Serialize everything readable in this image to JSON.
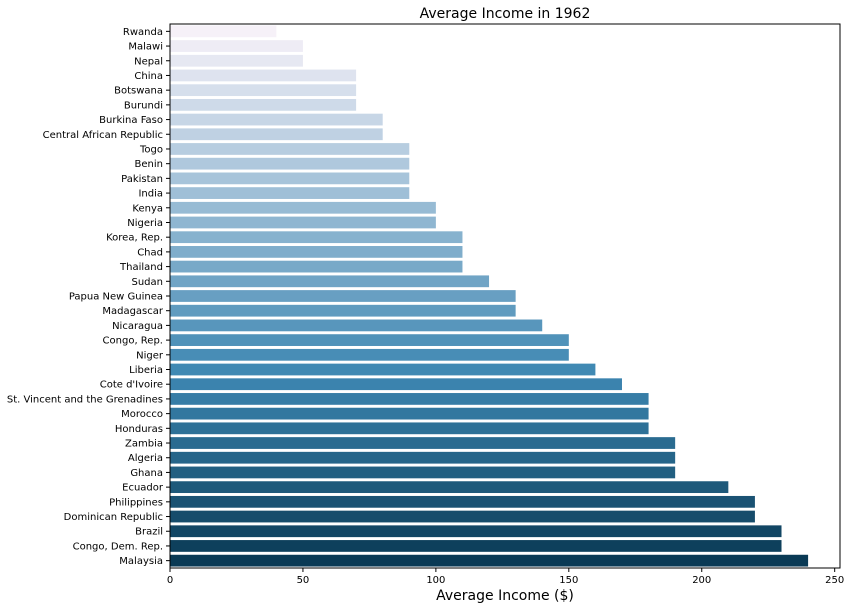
{
  "chart_data": {
    "type": "bar",
    "orientation": "horizontal",
    "title": "Average Income in 1962",
    "xlabel": "Average Income ($)",
    "ylabel": "",
    "xlim": [
      0,
      252
    ],
    "xticks": [
      0,
      50,
      100,
      150,
      200,
      250
    ],
    "grid": false,
    "legend": "none",
    "palette": {
      "light": "#f6f1f8",
      "mid": "#3d87b2",
      "dark": "#0a3a55"
    },
    "categories": [
      "Rwanda",
      "Malawi",
      "Nepal",
      "China",
      "Botswana",
      "Burundi",
      "Burkina Faso",
      "Central African Republic",
      "Togo",
      "Benin",
      "Pakistan",
      "India",
      "Kenya",
      "Nigeria",
      "Korea, Rep.",
      "Chad",
      "Thailand",
      "Sudan",
      "Papua New Guinea",
      "Madagascar",
      "Nicaragua",
      "Congo, Rep.",
      "Niger",
      "Liberia",
      "Cote d'Ivoire",
      "St. Vincent and the Grenadines",
      "Morocco",
      "Honduras",
      "Zambia",
      "Algeria",
      "Ghana",
      "Ecuador",
      "Philippines",
      "Dominican Republic",
      "Brazil",
      "Congo, Dem. Rep.",
      "Malaysia"
    ],
    "values": [
      40,
      50,
      50,
      70,
      70,
      70,
      80,
      80,
      90,
      90,
      90,
      90,
      100,
      100,
      110,
      110,
      110,
      120,
      130,
      130,
      140,
      150,
      150,
      160,
      170,
      180,
      180,
      180,
      190,
      190,
      190,
      210,
      220,
      220,
      230,
      230,
      240
    ]
  }
}
